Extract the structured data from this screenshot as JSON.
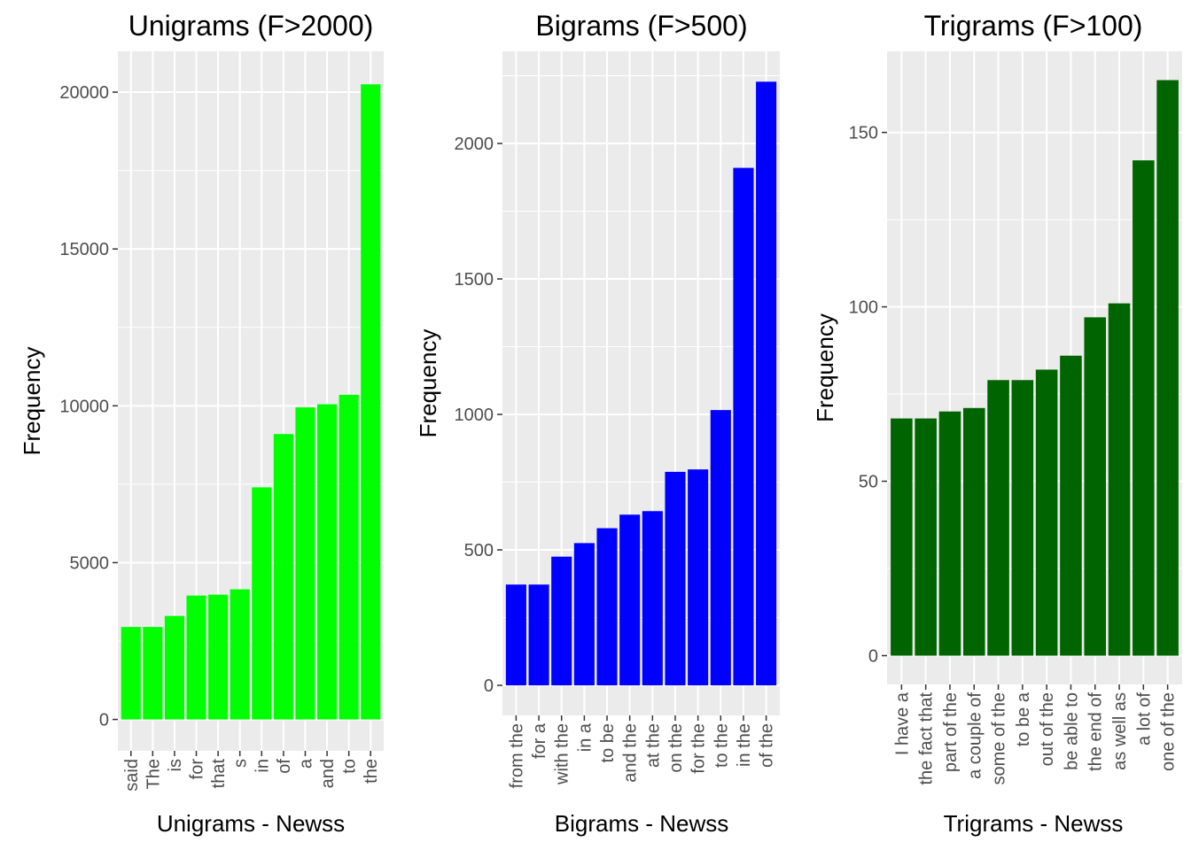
{
  "chart_data": [
    {
      "type": "bar",
      "title": "Unigrams (F>2000)",
      "xlabel": "Unigrams - Newss",
      "ylabel": "Frequency",
      "categories": [
        "said",
        "The",
        "is",
        "for",
        "that",
        "s",
        "in",
        "of",
        "a",
        "and",
        "to",
        "the"
      ],
      "values": [
        2950,
        2950,
        3300,
        3950,
        3980,
        4150,
        7400,
        9100,
        9950,
        10050,
        10350,
        20250
      ],
      "yticks": [
        0,
        5000,
        10000,
        15000,
        20000
      ],
      "ylim": [
        -1000,
        21300
      ],
      "bar_color": "#00ff00",
      "grid": true
    },
    {
      "type": "bar",
      "title": "Bigrams (F>500)",
      "xlabel": "Bigrams - Newss",
      "ylabel": "Frequency",
      "categories": [
        "from the",
        "for a",
        "with the",
        "in a",
        "to be",
        "and the",
        "at the",
        "on the",
        "for the",
        "to the",
        "in the",
        "of the"
      ],
      "values": [
        372,
        372,
        475,
        525,
        580,
        630,
        643,
        788,
        797,
        1016,
        1910,
        2228
      ],
      "yticks": [
        0,
        500,
        1000,
        1500,
        2000
      ],
      "ylim": [
        -111,
        2340
      ],
      "bar_color": "#0000ff",
      "grid": true
    },
    {
      "type": "bar",
      "title": "Trigrams (F>100)",
      "xlabel": "Trigrams - Newss",
      "ylabel": "Frequency",
      "categories": [
        "I have a",
        "the fact that",
        "part of the",
        "a couple of",
        "some of the",
        "to be a",
        "out of the",
        "be able to",
        "the end of",
        "as well as",
        "a lot of",
        "one of the"
      ],
      "values": [
        68,
        68,
        70,
        71,
        79,
        79,
        82,
        86,
        97,
        101,
        142,
        165
      ],
      "yticks": [
        0,
        50,
        100,
        150
      ],
      "ylim": [
        -8.25,
        173.25
      ],
      "bar_color": "#006400",
      "grid": true
    }
  ]
}
